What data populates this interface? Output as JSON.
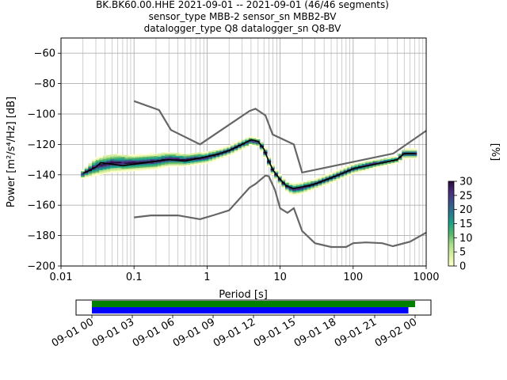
{
  "header": {
    "title_lines": [
      "BK.BK60.00.HHE   2021-09-01 -- 2021-09-01  (46/46 segments)",
      "sensor_type MBB-2 sensor_sn MBB2-BV",
      "datalogger_type Q8 datalogger_sn Q8-BV"
    ]
  },
  "chart_data": {
    "type": "heatmap",
    "xlabel": "Period [s]",
    "ylabel": "Power [m²/s⁴/Hz] [dB]",
    "x_scale": "log",
    "xlim": [
      0.01,
      1000
    ],
    "ylim": [
      -200,
      -50
    ],
    "x_ticks": [
      0.01,
      0.1,
      1,
      10,
      100,
      1000
    ],
    "x_tick_labels": [
      "0.01",
      "0.1",
      "1",
      "10",
      "100",
      "1000"
    ],
    "y_ticks": [
      -200,
      -180,
      -160,
      -140,
      -120,
      -100,
      -80,
      -60
    ],
    "y_tick_labels": [
      "−200",
      "−180",
      "−160",
      "−140",
      "−120",
      "−100",
      "−80",
      "−60"
    ],
    "grid": true,
    "colorbar": {
      "label": "[%]",
      "range": [
        0,
        30
      ],
      "ticks": [
        0,
        5,
        10,
        15,
        20,
        25,
        30
      ],
      "tick_labels": [
        "0",
        "5",
        "10",
        "15",
        "20",
        "25",
        "30"
      ],
      "colormap": [
        "#ffffcc",
        "#d9f0a3",
        "#addd8e",
        "#5ab76a",
        "#1fa187",
        "#2a788e",
        "#3b528b",
        "#472d7b",
        "#2a0a3a"
      ]
    },
    "mean_psd": {
      "color": "#000000",
      "points": [
        [
          0.02,
          -139
        ],
        [
          0.025,
          -137
        ],
        [
          0.03,
          -135
        ],
        [
          0.035,
          -132
        ],
        [
          0.05,
          -133
        ],
        [
          0.07,
          -134
        ],
        [
          0.1,
          -133
        ],
        [
          0.15,
          -132
        ],
        [
          0.2,
          -131
        ],
        [
          0.3,
          -130
        ],
        [
          0.5,
          -131
        ],
        [
          0.8,
          -129
        ],
        [
          1,
          -128
        ],
        [
          1.5,
          -126
        ],
        [
          2,
          -124
        ],
        [
          3,
          -120
        ],
        [
          4,
          -117
        ],
        [
          5,
          -118
        ],
        [
          6,
          -123
        ],
        [
          7,
          -131
        ],
        [
          8,
          -137
        ],
        [
          10,
          -143
        ],
        [
          12,
          -147
        ],
        [
          15,
          -149
        ],
        [
          20,
          -148
        ],
        [
          30,
          -146
        ],
        [
          50,
          -142
        ],
        [
          80,
          -138
        ],
        [
          100,
          -136
        ],
        [
          200,
          -133
        ],
        [
          400,
          -130
        ],
        [
          500,
          -126
        ],
        [
          700,
          -126
        ]
      ]
    },
    "noise_models": [
      {
        "role": "high-noise-model",
        "color": "#666666",
        "points": [
          [
            0.1,
            -91.5
          ],
          [
            0.22,
            -97.4
          ],
          [
            0.32,
            -110.5
          ],
          [
            0.8,
            -120
          ],
          [
            3.8,
            -98
          ],
          [
            4.6,
            -96.5
          ],
          [
            6.3,
            -101
          ],
          [
            7.9,
            -113.5
          ],
          [
            15.4,
            -120
          ],
          [
            20,
            -138.5
          ],
          [
            354.8,
            -126
          ],
          [
            1000,
            -111
          ]
        ]
      },
      {
        "role": "low-noise-model",
        "color": "#666666",
        "points": [
          [
            0.1,
            -168
          ],
          [
            0.17,
            -166.7
          ],
          [
            0.4,
            -166.7
          ],
          [
            0.8,
            -169.2
          ],
          [
            1.26,
            -166.4
          ],
          [
            2.0,
            -163.4
          ],
          [
            3.8,
            -148.5
          ],
          [
            4.6,
            -146
          ],
          [
            6.3,
            -140.5
          ],
          [
            7.0,
            -141
          ],
          [
            8.5,
            -150
          ],
          [
            10,
            -162
          ],
          [
            12.6,
            -165
          ],
          [
            15.4,
            -162
          ],
          [
            20,
            -177
          ],
          [
            30,
            -185
          ],
          [
            50,
            -187.5
          ],
          [
            80,
            -187.5
          ],
          [
            100,
            -185
          ],
          [
            150,
            -184.5
          ],
          [
            250,
            -185
          ],
          [
            350,
            -187
          ],
          [
            600,
            -184
          ],
          [
            1000,
            -178
          ]
        ]
      }
    ],
    "histogram_band": [
      [
        0.02,
        -142,
        -137
      ],
      [
        0.03,
        -140,
        -129
      ],
      [
        0.05,
        -138,
        -126
      ],
      [
        0.1,
        -137,
        -127
      ],
      [
        0.2,
        -136,
        -126
      ],
      [
        0.3,
        -134,
        -125
      ],
      [
        0.5,
        -134,
        -126
      ],
      [
        1,
        -132,
        -125
      ],
      [
        1.5,
        -129,
        -123
      ],
      [
        2,
        -127,
        -121
      ],
      [
        3,
        -123,
        -117
      ],
      [
        4,
        -120,
        -115
      ],
      [
        5,
        -121,
        -116
      ],
      [
        6,
        -126,
        -120
      ],
      [
        7,
        -134,
        -128
      ],
      [
        8,
        -140,
        -134
      ],
      [
        10,
        -146,
        -140
      ],
      [
        12,
        -150,
        -144
      ],
      [
        15,
        -153,
        -146
      ],
      [
        20,
        -152,
        -145
      ],
      [
        30,
        -149,
        -143
      ],
      [
        50,
        -145,
        -139
      ],
      [
        80,
        -141,
        -135
      ],
      [
        100,
        -139,
        -133
      ],
      [
        200,
        -135,
        -130
      ],
      [
        400,
        -132,
        -128
      ],
      [
        500,
        -129,
        -123
      ],
      [
        700,
        -129,
        -123
      ]
    ],
    "timeline": {
      "ticks": [
        "09-01 00",
        "09-01 03",
        "09-01 06",
        "09-01 09",
        "09-01 12",
        "09-01 15",
        "09-01 18",
        "09-01 21",
        "09-02 00"
      ],
      "span_hours": 24,
      "bars": [
        {
          "role": "data-coverage",
          "color": "#008000",
          "start_h": 0,
          "end_h": 24.0
        },
        {
          "role": "used-segments",
          "color": "#0000ff",
          "start_h": 0,
          "end_h": 23.5
        }
      ]
    }
  }
}
